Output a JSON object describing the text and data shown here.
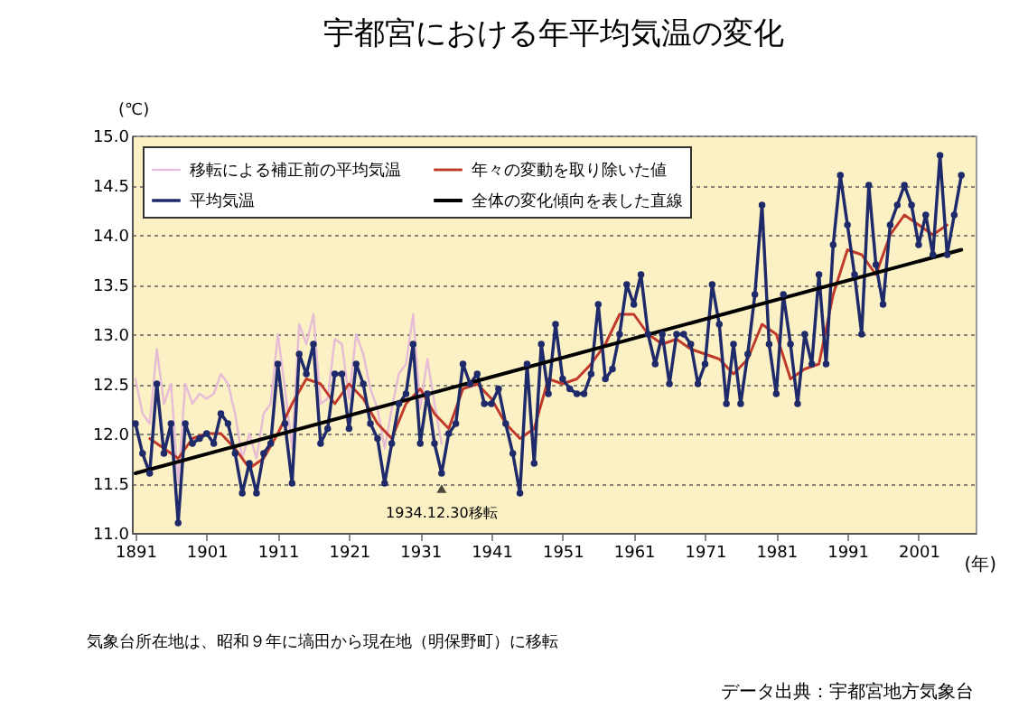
{
  "chart_data": {
    "type": "line",
    "title": "宇都宮における年平均気温の変化",
    "xlabel": "(年)",
    "ylabel": "(℃)",
    "x": [
      1891,
      1892,
      1893,
      1894,
      1895,
      1896,
      1897,
      1898,
      1899,
      1900,
      1901,
      1902,
      1903,
      1904,
      1905,
      1906,
      1907,
      1908,
      1909,
      1910,
      1911,
      1912,
      1913,
      1914,
      1915,
      1916,
      1917,
      1918,
      1919,
      1920,
      1921,
      1922,
      1923,
      1924,
      1925,
      1926,
      1927,
      1928,
      1929,
      1930,
      1931,
      1932,
      1933,
      1934,
      1935,
      1936,
      1937,
      1938,
      1939,
      1940,
      1941,
      1942,
      1943,
      1944,
      1945,
      1946,
      1947,
      1948,
      1949,
      1950,
      1951,
      1952,
      1953,
      1954,
      1955,
      1956,
      1957,
      1958,
      1959,
      1960,
      1961,
      1962,
      1963,
      1964,
      1965,
      1966,
      1967,
      1968,
      1969,
      1970,
      1971,
      1972,
      1973,
      1974,
      1975,
      1976,
      1977,
      1978,
      1979,
      1980,
      1981,
      1982,
      1983,
      1984,
      1985,
      1986,
      1987,
      1988,
      1989,
      1990,
      1991,
      1992,
      1993,
      1994,
      1995,
      1996,
      1997,
      1998,
      1999,
      2000,
      2001,
      2002,
      2003,
      2004,
      2005,
      2006,
      2007
    ],
    "series": [
      {
        "name": "移転による補正前の平均気温",
        "color": "#e6bcd6",
        "x": [
          1891,
          1892,
          1893,
          1894,
          1895,
          1896,
          1897,
          1898,
          1899,
          1900,
          1901,
          1902,
          1903,
          1904,
          1905,
          1906,
          1907,
          1908,
          1909,
          1910,
          1911,
          1912,
          1913,
          1914,
          1915,
          1916,
          1917,
          1918,
          1919,
          1920,
          1921,
          1922,
          1923,
          1924,
          1925,
          1926,
          1927,
          1928,
          1929,
          1930,
          1931,
          1932,
          1933,
          1934
        ],
        "values": [
          12.55,
          12.2,
          12.1,
          12.85,
          12.3,
          12.5,
          11.5,
          12.5,
          12.3,
          12.4,
          12.35,
          12.4,
          12.6,
          12.5,
          12.2,
          11.75,
          12.0,
          11.75,
          12.2,
          12.3,
          13.0,
          12.45,
          11.85,
          13.1,
          12.9,
          13.2,
          12.3,
          12.35,
          12.95,
          12.9,
          12.35,
          13.0,
          12.8,
          12.45,
          12.25,
          11.85,
          12.25,
          12.6,
          12.7,
          13.2,
          12.25,
          12.75,
          12.3,
          11.9
        ]
      },
      {
        "name": "年々の変動を取り除いた値",
        "color": "#c0392b",
        "x": [
          1893,
          1895,
          1897,
          1899,
          1901,
          1903,
          1905,
          1907,
          1909,
          1911,
          1913,
          1915,
          1917,
          1919,
          1921,
          1923,
          1925,
          1927,
          1929,
          1931,
          1933,
          1935,
          1937,
          1939,
          1941,
          1943,
          1945,
          1947,
          1949,
          1951,
          1953,
          1955,
          1957,
          1959,
          1961,
          1963,
          1965,
          1967,
          1969,
          1971,
          1973,
          1975,
          1977,
          1979,
          1981,
          1983,
          1985,
          1987,
          1989,
          1991,
          1993,
          1995,
          1997,
          1999,
          2001,
          2003,
          2005
        ],
        "values": [
          11.95,
          11.85,
          11.75,
          11.95,
          12.0,
          12.0,
          11.85,
          11.65,
          11.75,
          12.0,
          12.3,
          12.55,
          12.5,
          12.3,
          12.5,
          12.35,
          12.1,
          11.95,
          12.3,
          12.45,
          12.2,
          12.05,
          12.45,
          12.5,
          12.35,
          12.1,
          11.95,
          12.05,
          12.55,
          12.5,
          12.55,
          12.7,
          12.9,
          13.2,
          13.2,
          13.0,
          12.9,
          12.95,
          12.85,
          12.8,
          12.75,
          12.6,
          12.75,
          13.1,
          13.0,
          12.55,
          12.65,
          12.7,
          13.4,
          13.85,
          13.8,
          13.6,
          14.0,
          14.2,
          14.1,
          14.0,
          14.1
        ]
      },
      {
        "name": "平均気温",
        "color": "#1f2a6b",
        "marker": "circle",
        "values": [
          12.1,
          11.8,
          11.6,
          12.5,
          11.8,
          12.1,
          11.1,
          12.1,
          11.9,
          11.95,
          12.0,
          11.9,
          12.2,
          12.1,
          11.8,
          11.4,
          11.7,
          11.4,
          11.8,
          11.9,
          12.7,
          12.1,
          11.5,
          12.8,
          12.6,
          12.9,
          11.9,
          12.05,
          12.6,
          12.6,
          12.05,
          12.7,
          12.5,
          12.1,
          11.95,
          11.5,
          11.9,
          12.3,
          12.4,
          12.9,
          11.9,
          12.4,
          11.9,
          11.6,
          12.0,
          12.1,
          12.7,
          12.5,
          12.6,
          12.3,
          12.3,
          12.45,
          12.1,
          11.8,
          11.4,
          12.7,
          11.7,
          12.9,
          12.4,
          13.1,
          12.55,
          12.45,
          12.4,
          12.4,
          12.6,
          13.3,
          12.55,
          12.65,
          13.0,
          13.5,
          13.3,
          13.6,
          13.0,
          12.7,
          13.0,
          12.5,
          13.0,
          13.0,
          12.9,
          12.5,
          12.7,
          13.5,
          13.1,
          12.3,
          12.9,
          12.3,
          12.8,
          13.4,
          14.3,
          12.9,
          12.4,
          13.4,
          12.9,
          12.3,
          13.0,
          12.7,
          13.6,
          12.7,
          13.9,
          14.6,
          14.1,
          13.6,
          13.0,
          14.5,
          13.7,
          13.3,
          14.1,
          14.3,
          14.5,
          14.3,
          13.9,
          14.2,
          13.8,
          14.8,
          13.8,
          14.2,
          14.6
        ]
      },
      {
        "name": "全体の変化傾向を表した直線",
        "color": "#000000",
        "x": [
          1891,
          2007
        ],
        "values": [
          11.6,
          13.85
        ]
      }
    ],
    "xlim": [
      1890.5,
      2009
    ],
    "xticks": [
      1891,
      1901,
      1911,
      1921,
      1931,
      1941,
      1951,
      1961,
      1971,
      1981,
      1991,
      2001
    ],
    "ylim": [
      11,
      15
    ],
    "yticks": [
      {
        "value": 11,
        "label": "11.0"
      },
      {
        "value": 11.5,
        "label": "11.5"
      },
      {
        "value": 12,
        "label": "12.0"
      },
      {
        "value": 12.5,
        "label": "12.5"
      },
      {
        "value": 13,
        "label": "13.0"
      },
      {
        "value": 13.5,
        "label": "13.5"
      },
      {
        "value": 14,
        "label": "14.0"
      },
      {
        "value": 14.5,
        "label": "14.5"
      },
      {
        "value": 15,
        "label": "15.0"
      }
    ],
    "grid": "y",
    "legend": "top left",
    "line_style": "solid",
    "annotations": [
      {
        "text": "1934.12.30移転",
        "x": 1934,
        "y": 11.5
      },
      "気象台所在地は、昭和９年に塙田から現在地（明保野町）に移転",
      "データ出典：宇都宮地方気象台"
    ]
  }
}
